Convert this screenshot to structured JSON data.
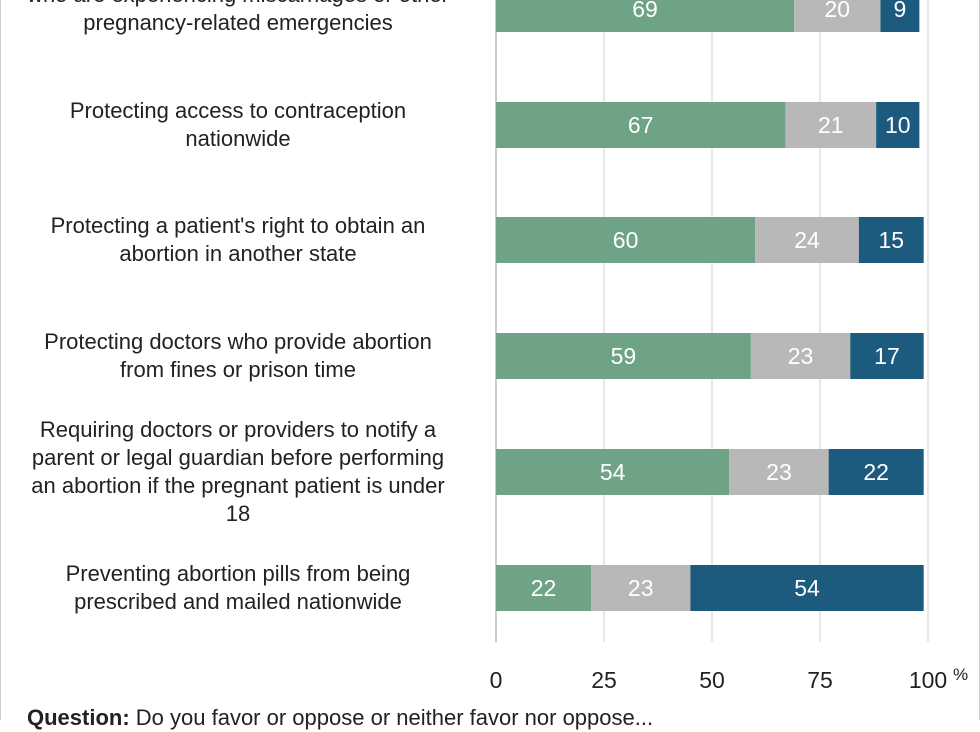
{
  "colors": {
    "favor": "#6fa386",
    "neither": "#b8b8b8",
    "oppose": "#1c5a7e",
    "grid": "#d9d9d9",
    "axis_text": "#222222",
    "bar_text": "#ffffff"
  },
  "chart_data": {
    "type": "bar",
    "orientation": "horizontal",
    "stacked": true,
    "categories": [
      "who are experiencing miscarriages or other pregnancy-related emergencies",
      "Protecting access to contraception nationwide",
      "Protecting a patient's right to obtain an abortion in another state",
      "Protecting doctors who provide abortion from fines or prison time",
      "Requiring doctors or providers to notify a parent or legal guardian before performing an abortion if the pregnant patient is under 18",
      "Preventing abortion pills from being prescribed and mailed nationwide"
    ],
    "category_lines": [
      [
        "who are experiencing miscarriages or other",
        "pregnancy-related emergencies"
      ],
      [
        "Protecting access to contraception",
        "nationwide"
      ],
      [
        "Protecting a patient's right to obtain an",
        "abortion in another state"
      ],
      [
        "Protecting doctors who provide abortion",
        "from fines or prison time"
      ],
      [
        "Requiring doctors or providers to notify a",
        "parent or legal guardian before performing",
        "an abortion if the pregnant patient is under",
        "18"
      ],
      [
        "Preventing abortion pills from being",
        "prescribed and mailed nationwide"
      ]
    ],
    "series": [
      {
        "values": [
          69,
          67,
          60,
          59,
          54,
          22
        ]
      },
      {
        "values": [
          20,
          21,
          24,
          23,
          23,
          23
        ]
      },
      {
        "values": [
          9,
          10,
          15,
          17,
          22,
          54
        ]
      }
    ],
    "xlim": [
      0,
      100
    ],
    "xticks": [
      "0",
      "25",
      "50",
      "75",
      "100"
    ],
    "xtick_values": [
      0,
      25,
      50,
      75,
      100
    ],
    "x_unit": "%",
    "grid": true
  },
  "question": {
    "label": "Question:",
    "text": " Do you favor or oppose or neither favor nor oppose..."
  }
}
